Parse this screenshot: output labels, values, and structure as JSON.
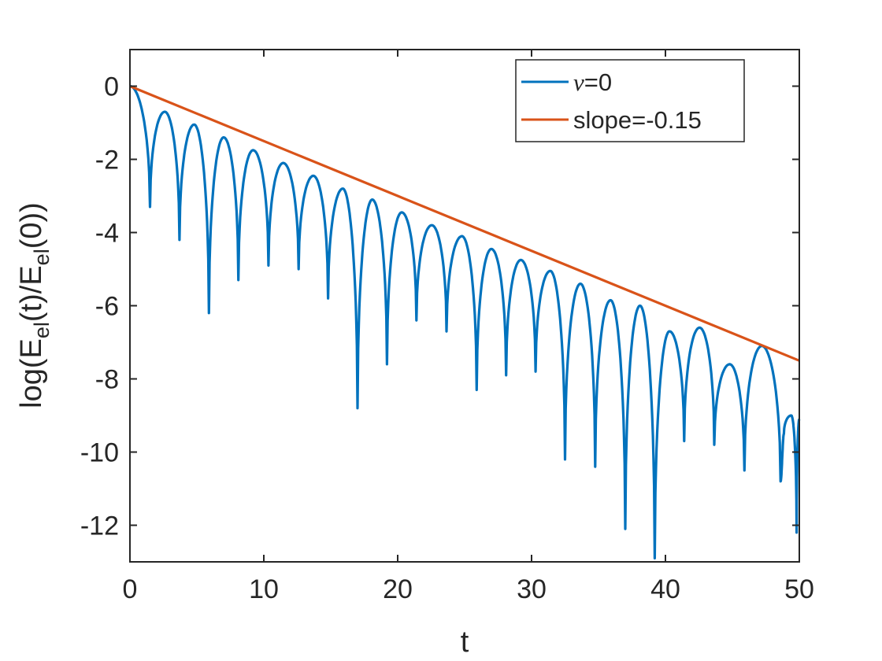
{
  "chart_data": {
    "type": "line",
    "title": "",
    "xlabel": "t",
    "ylabel": {
      "prefix": "log(E",
      "sub1": "el",
      "middle": "(t)/E",
      "sub2": "el",
      "suffix": "(0))"
    },
    "xlim": [
      0,
      50
    ],
    "ylim": [
      -13,
      1
    ],
    "x_ticks": [
      0,
      10,
      20,
      30,
      40,
      50
    ],
    "x_tick_labels": [
      "0",
      "10",
      "20",
      "30",
      "40",
      "50"
    ],
    "y_ticks": [
      0,
      -2,
      -4,
      -6,
      -8,
      -10,
      -12
    ],
    "y_tick_labels": [
      "0",
      "-2",
      "-4",
      "-6",
      "-8",
      "-10",
      "-12"
    ],
    "grid": false,
    "legend_position": "top-right",
    "series": [
      {
        "name": "=0",
        "name_symbol": "ν",
        "color": "#0072BD",
        "style": "oscillating-decay",
        "minima_t": [
          1.5,
          3.7,
          5.9,
          8.1,
          10.35,
          12.6,
          14.8,
          17.0,
          19.2,
          21.4,
          23.65,
          25.9,
          28.1,
          30.3,
          32.5,
          34.75,
          37.0,
          39.2,
          41.4,
          43.65,
          45.9,
          48.6
        ],
        "minima_y": [
          -3.3,
          -4.2,
          -6.2,
          -5.3,
          -4.9,
          -5.0,
          -5.8,
          -8.8,
          -7.6,
          -6.4,
          -6.7,
          -8.3,
          -7.9,
          -7.8,
          -10.2,
          -10.4,
          -12.1,
          -12.9,
          -9.7,
          -9.8,
          -10.5,
          -10.8
        ],
        "maxima_t": [
          2.6,
          4.8,
          7.0,
          9.2,
          11.45,
          13.7,
          15.9,
          18.1,
          20.3,
          22.55,
          24.8,
          27.0,
          29.2,
          31.4,
          33.65,
          35.9,
          38.1,
          40.3,
          42.55,
          44.8,
          47.2,
          49.4
        ],
        "maxima_y": [
          -0.7,
          -1.05,
          -1.4,
          -1.75,
          -2.1,
          -2.45,
          -2.8,
          -3.1,
          -3.45,
          -3.8,
          -4.1,
          -4.45,
          -4.75,
          -5.05,
          -5.4,
          -5.85,
          -6.0,
          -6.7,
          -6.6,
          -7.6,
          -7.1,
          -9.0
        ],
        "start": [
          0,
          0
        ],
        "end": [
          50,
          -9.1
        ],
        "extra_points": [
          [
            48.85,
            -9.5
          ],
          [
            49.8,
            -12.2
          ]
        ]
      },
      {
        "name": "slope=-0.15",
        "color": "#D95319",
        "x": [
          0,
          50
        ],
        "y": [
          0,
          -7.5
        ]
      }
    ]
  }
}
